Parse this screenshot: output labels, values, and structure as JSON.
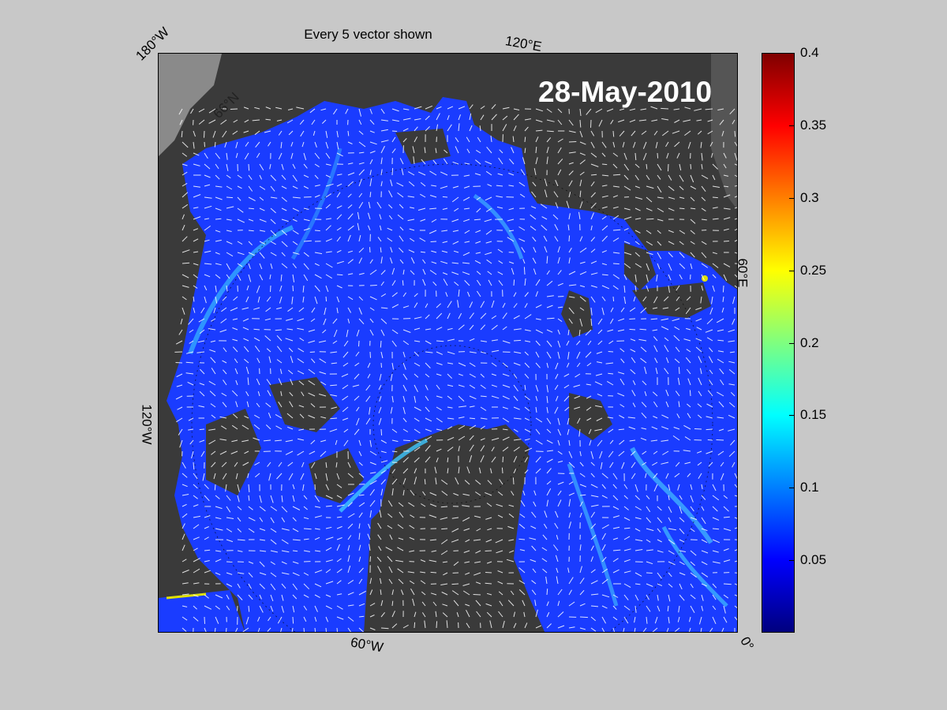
{
  "title": "Every 5 vector shown",
  "date": "28-May-2010",
  "longitude_labels": {
    "top_left": "180°W",
    "top_right": "120°E",
    "right": "60°E",
    "bottom_right": "0°",
    "left": "120°W",
    "bottom": "60°W"
  },
  "latitude_label": "66°N",
  "colorbar": {
    "ticks": [
      "0.4",
      "0.35",
      "0.3",
      "0.25",
      "0.2",
      "0.15",
      "0.1",
      "0.05"
    ],
    "tick_values": [
      0.4,
      0.35,
      0.3,
      0.25,
      0.2,
      0.15,
      0.1,
      0.05
    ],
    "min": 0,
    "max": 0.4,
    "colormap": "jet"
  },
  "colors": {
    "ocean": "#1a3cff",
    "land": "#3a3a3a",
    "background": "#c8c8c8",
    "vectors": "#ffffff"
  }
}
